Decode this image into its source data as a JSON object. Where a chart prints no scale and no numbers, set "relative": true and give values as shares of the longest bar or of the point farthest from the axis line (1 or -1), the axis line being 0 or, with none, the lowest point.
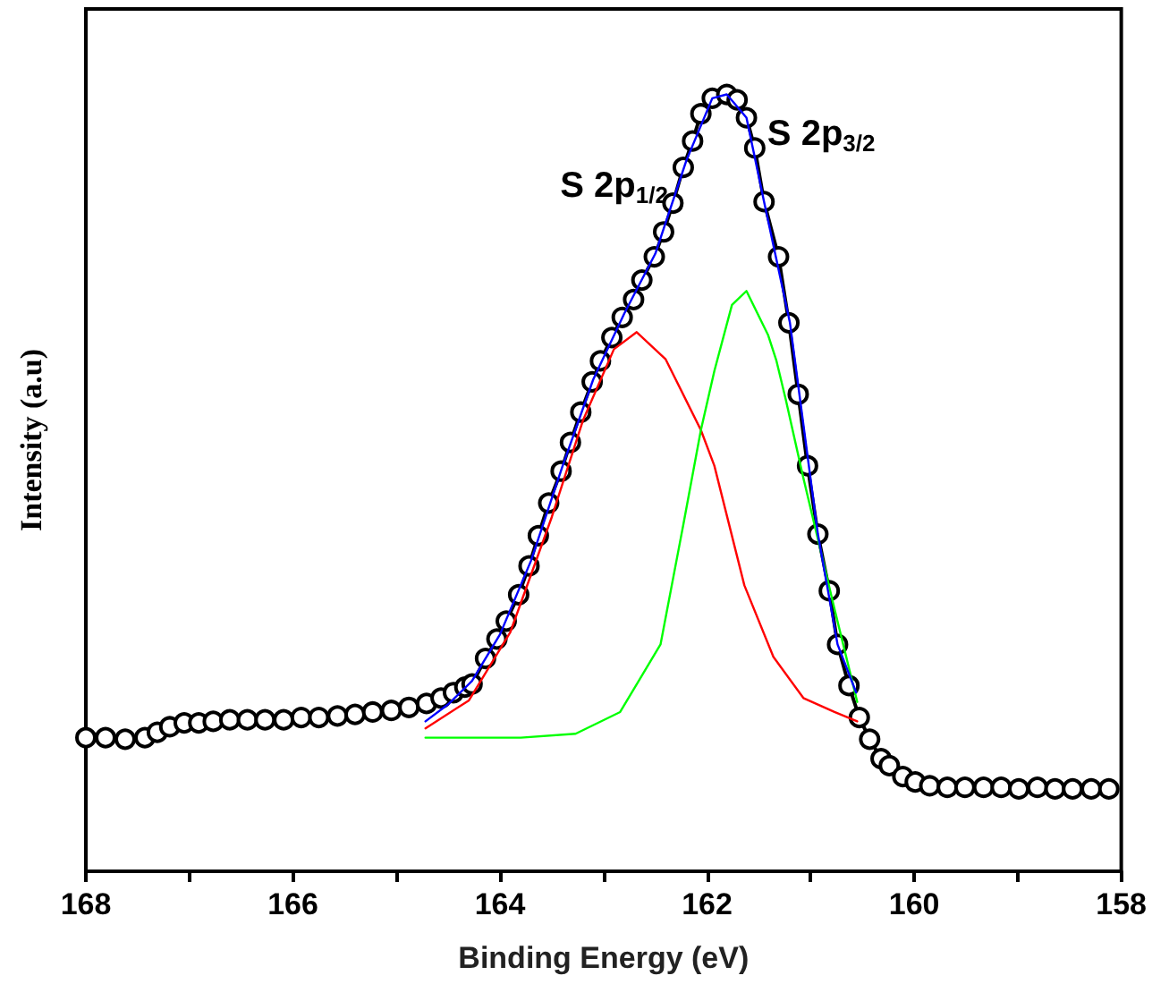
{
  "chart_data": {
    "type": "line",
    "relative": true,
    "xlabel": "Binding Energy (eV)",
    "ylabel": "Intensity (a.u)",
    "xlim": [
      168,
      158
    ],
    "xticks": [
      168,
      {
        "value": 167,
        "label": null
      },
      166,
      {
        "value": 165,
        "label": null
      },
      164,
      {
        "value": 163,
        "label": null
      },
      162,
      {
        "value": 161,
        "label": null
      },
      160,
      {
        "value": 159,
        "label": null
      },
      158
    ],
    "grid": false,
    "line_style": "solid",
    "annotations": [
      "S 2p$_{1/2}$",
      "S 2p$_{3/2}$"
    ],
    "series": [
      {
        "color": "#000000",
        "marker": "circle",
        "x": [
          168.0,
          167.81,
          167.62,
          167.43,
          167.31,
          167.19,
          167.05,
          166.91,
          166.77,
          166.61,
          166.44,
          166.27,
          166.09,
          165.92,
          165.75,
          165.57,
          165.4,
          165.23,
          165.05,
          164.88,
          164.71,
          164.57,
          164.45,
          164.34,
          164.27,
          164.14,
          164.03,
          163.94,
          163.82,
          163.72,
          163.63,
          163.53,
          163.41,
          163.32,
          163.22,
          163.11,
          163.03,
          162.92,
          162.82,
          162.71,
          162.63,
          162.51,
          162.42,
          162.33,
          162.23,
          162.14,
          162.06,
          161.95,
          161.81,
          161.71,
          161.62,
          161.54,
          161.45,
          161.31,
          161.21,
          161.12,
          161.03,
          160.93,
          160.82,
          160.74,
          160.63,
          160.53,
          160.43,
          160.32,
          160.24,
          160.11,
          159.99,
          159.85,
          159.68,
          159.51,
          159.33,
          159.16,
          158.99,
          158.81,
          158.64,
          158.47,
          158.29,
          158.12
        ],
        "values": [
          0.172,
          0.172,
          0.17,
          0.172,
          0.179,
          0.186,
          0.191,
          0.191,
          0.193,
          0.195,
          0.195,
          0.195,
          0.195,
          0.198,
          0.198,
          0.2,
          0.202,
          0.205,
          0.207,
          0.211,
          0.216,
          0.223,
          0.23,
          0.237,
          0.241,
          0.274,
          0.299,
          0.322,
          0.356,
          0.393,
          0.432,
          0.474,
          0.515,
          0.552,
          0.591,
          0.63,
          0.657,
          0.687,
          0.713,
          0.736,
          0.761,
          0.791,
          0.823,
          0.86,
          0.906,
          0.94,
          0.975,
          0.995,
          1.0,
          0.993,
          0.97,
          0.931,
          0.862,
          0.791,
          0.706,
          0.614,
          0.522,
          0.434,
          0.361,
          0.292,
          0.239,
          0.198,
          0.17,
          0.145,
          0.136,
          0.122,
          0.115,
          0.11,
          0.108,
          0.108,
          0.108,
          0.108,
          0.106,
          0.108,
          0.106,
          0.106,
          0.106,
          0.106
        ]
      },
      {
        "color": "#ff0000",
        "marker": "none",
        "x": [
          164.72,
          164.3,
          163.9,
          163.5,
          163.2,
          162.9,
          162.68,
          162.4,
          162.06,
          161.93,
          161.64,
          161.36,
          161.07,
          160.77,
          160.55
        ],
        "values": [
          0.184,
          0.22,
          0.308,
          0.456,
          0.58,
          0.672,
          0.694,
          0.659,
          0.568,
          0.522,
          0.368,
          0.276,
          0.223,
          0.205,
          0.193
        ]
      },
      {
        "color": "#00ff00",
        "marker": "none",
        "x": [
          164.72,
          163.8,
          163.27,
          162.84,
          162.45,
          162.23,
          162.06,
          161.93,
          161.76,
          161.62,
          161.41,
          161.33,
          161.24,
          161.07,
          160.77,
          160.55
        ],
        "values": [
          0.172,
          0.172,
          0.177,
          0.205,
          0.292,
          0.446,
          0.568,
          0.644,
          0.729,
          0.747,
          0.69,
          0.657,
          0.607,
          0.506,
          0.338,
          0.218
        ]
      },
      {
        "color": "#0000ff",
        "marker": "none",
        "x": [
          164.72,
          164.5,
          164.27,
          164.0,
          163.7,
          163.4,
          163.1,
          162.8,
          162.5,
          162.2,
          161.95,
          161.81,
          161.62,
          161.45,
          161.2,
          160.93,
          160.74,
          160.56
        ],
        "values": [
          0.193,
          0.215,
          0.245,
          0.305,
          0.4,
          0.52,
          0.633,
          0.718,
          0.795,
          0.915,
          0.995,
          1.0,
          0.97,
          0.862,
          0.706,
          0.434,
          0.292,
          0.23
        ]
      }
    ]
  }
}
